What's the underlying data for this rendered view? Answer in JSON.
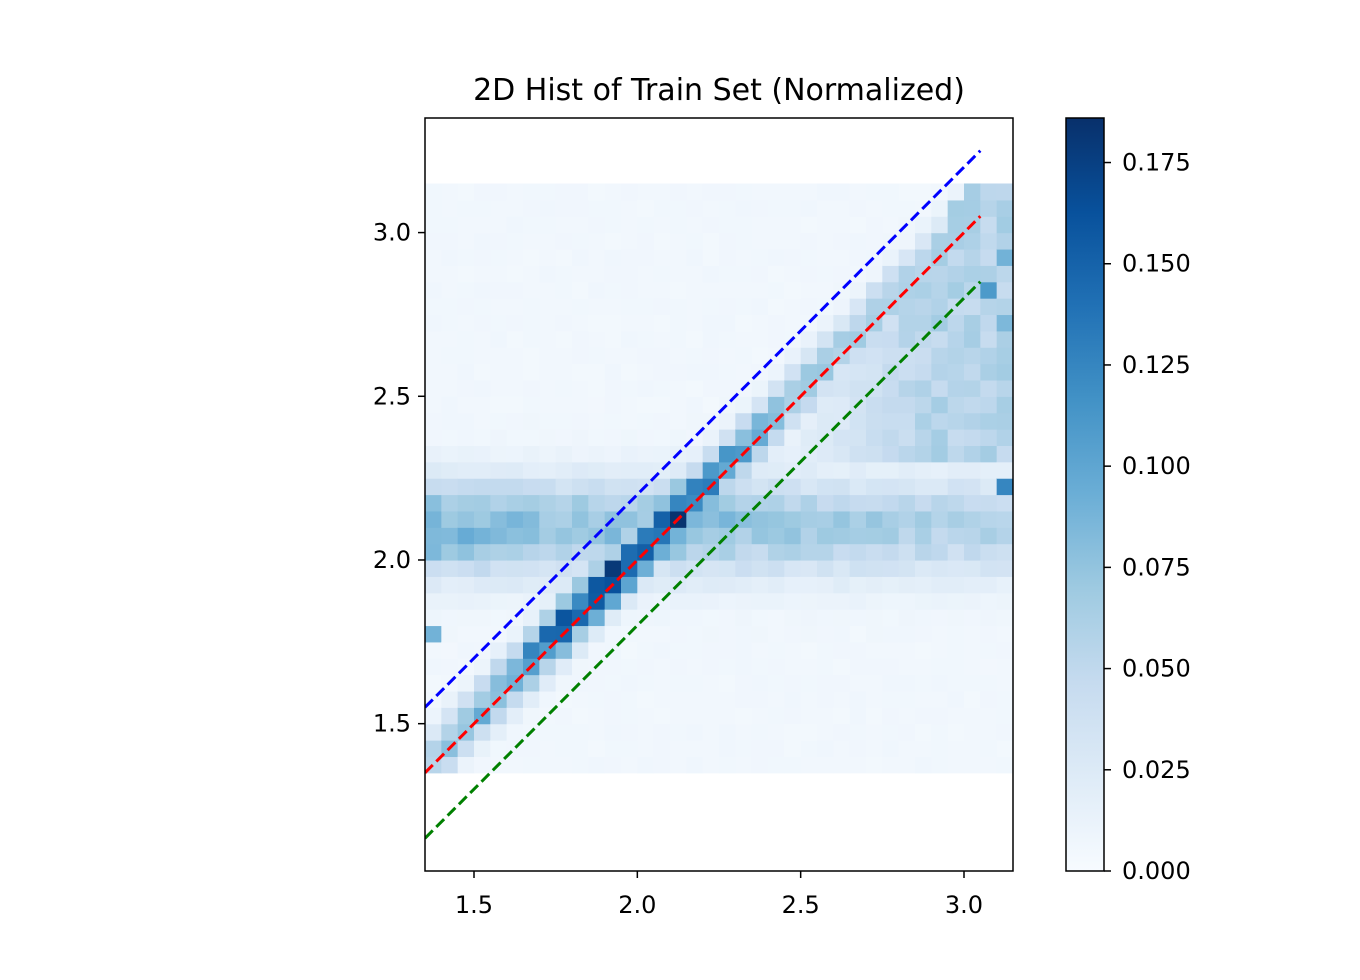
{
  "chart_data": {
    "type": "heatmap",
    "title": "2D Hist of Train Set (Normalized)",
    "xlabel": "",
    "ylabel": "",
    "xlim": [
      1.35,
      3.15
    ],
    "ylim": [
      1.05,
      3.35
    ],
    "x_ticks": [
      1.5,
      2.0,
      2.5,
      3.0
    ],
    "x_tick_labels": [
      "1.5",
      "2.0",
      "2.5",
      "3.0"
    ],
    "y_ticks": [
      1.5,
      2.0,
      2.5,
      3.0
    ],
    "y_tick_labels": [
      "1.5",
      "2.0",
      "2.5",
      "3.0"
    ],
    "bins": {
      "x_range": [
        1.35,
        3.15
      ],
      "y_range": [
        1.35,
        3.15
      ],
      "n_x": 36,
      "n_y": 36
    },
    "grid": false,
    "colormap": "Blues",
    "colorbar": {
      "range": [
        0.0,
        0.186
      ],
      "ticks": [
        0.0,
        0.025,
        0.05,
        0.075,
        0.1,
        0.125,
        0.15,
        0.175
      ],
      "tick_labels": [
        "0.000",
        "0.025",
        "0.050",
        "0.075",
        "0.100",
        "0.125",
        "0.150",
        "0.175"
      ]
    },
    "lines": [
      {
        "color": "#0000ff",
        "style": "dashed",
        "points": [
          [
            1.35,
            1.55
          ],
          [
            3.05,
            3.25
          ]
        ]
      },
      {
        "color": "#ff0000",
        "style": "dashed",
        "points": [
          [
            1.35,
            1.35
          ],
          [
            3.05,
            3.05
          ]
        ]
      },
      {
        "color": "#008000",
        "style": "dashed",
        "points": [
          [
            1.35,
            1.15
          ],
          [
            3.05,
            2.85
          ]
        ]
      }
    ],
    "density_model": {
      "diagonal_band": {
        "peak": 0.18,
        "center": [
          1.95,
          2.0
        ],
        "offset_from_diagonal": 0.02,
        "width": 0.08,
        "spread_along": 0.35,
        "base": 0.06
      },
      "horizontal_band": {
        "y": 2.1,
        "width": 0.14,
        "left_level": 0.09,
        "right_level": 0.05
      },
      "upper_right_spread": 0.05,
      "background": 0.006,
      "hot_cells": [
        {
          "x": 3.125,
          "y": 2.225,
          "value": 0.125
        },
        {
          "x": 3.075,
          "y": 2.825,
          "value": 0.11
        },
        {
          "x": 3.125,
          "y": 2.925,
          "value": 0.09
        },
        {
          "x": 3.125,
          "y": 2.725,
          "value": 0.085
        },
        {
          "x": 1.775,
          "y": 1.825,
          "value": 0.16
        },
        {
          "x": 1.925,
          "y": 1.975,
          "value": 0.18
        },
        {
          "x": 1.375,
          "y": 1.775,
          "value": 0.09
        },
        {
          "x": 1.375,
          "y": 2.025,
          "value": 0.085
        }
      ]
    }
  }
}
